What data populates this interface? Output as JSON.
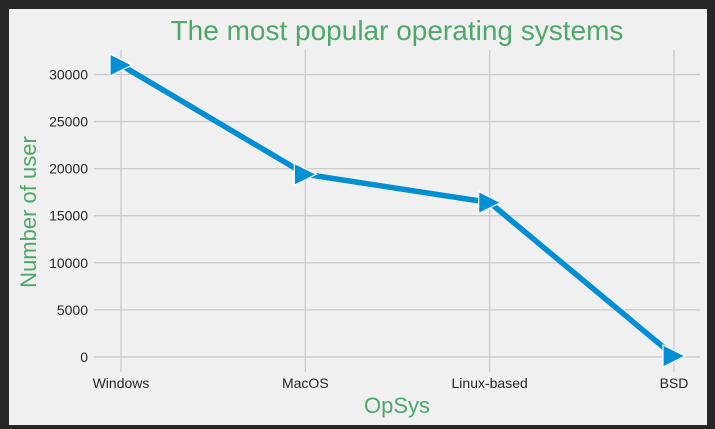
{
  "chart_data": {
    "type": "line",
    "title": "The most popular operating systems",
    "xlabel": "OpSys",
    "ylabel": "Number of user",
    "categories": [
      "Windows",
      "MacOS",
      "Linux-based",
      "BSD"
    ],
    "series": [
      {
        "values": [
          31000,
          19400,
          16400,
          100
        ],
        "marker": "triangle-right",
        "color": "#008fd5"
      }
    ],
    "yticks": [
      0,
      5000,
      10000,
      15000,
      20000,
      25000,
      30000
    ],
    "ylim": [
      -1600,
      32600
    ],
    "grid": true,
    "colors": {
      "background": "#f0f0f0",
      "border": "#262626",
      "grid": "#cbcbcb",
      "text_accent": "#4fa86a"
    }
  }
}
